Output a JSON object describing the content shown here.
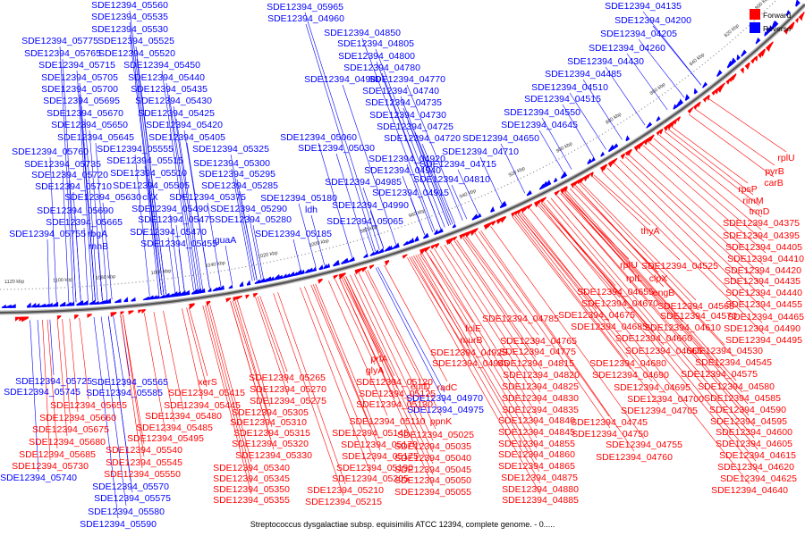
{
  "caption": "Streptococcus dysgalactiae subsp. equisimilis ATCC 12394, complete genome. - 0.....",
  "legend": [
    {
      "label": "Forward",
      "color": "#ff0000"
    },
    {
      "label": "Reverse",
      "color": "#0000ff"
    }
  ],
  "colors": {
    "forward": "#ff0000",
    "reverse": "#0000ff",
    "backbone": "#555555"
  },
  "ticks": [
    {
      "label": "800 kbp",
      "frac": 0.965
    },
    {
      "label": "820 kbp",
      "frac": 0.915
    },
    {
      "label": "840 kbp",
      "frac": 0.86
    },
    {
      "label": "860 kbp",
      "frac": 0.8
    },
    {
      "label": "880 kbp",
      "frac": 0.735
    },
    {
      "label": "900 kbp",
      "frac": 0.665
    },
    {
      "label": "920 kbp",
      "frac": 0.6
    },
    {
      "label": "940 kbp",
      "frac": 0.535
    },
    {
      "label": "960 kbp",
      "frac": 0.47
    },
    {
      "label": "980 kbp",
      "frac": 0.41
    },
    {
      "label": "1000 kbp",
      "frac": 0.35
    },
    {
      "label": "1020 kbp",
      "frac": 0.29
    },
    {
      "label": "1040 kbp",
      "frac": 0.23
    },
    {
      "label": "1060 kbp",
      "frac": 0.17
    },
    {
      "label": "1080 kbp",
      "frac": 0.11
    },
    {
      "label": "1100 kbp",
      "frac": 0.065
    },
    {
      "label": "1120 kbp",
      "frac": 0.015
    }
  ],
  "top_blue_labels": [
    [
      "SDE12394_05560",
      145,
      9
    ],
    [
      "SDE12394_05535",
      145,
      22
    ],
    [
      "SDE12394_05530",
      145,
      36
    ],
    [
      "SDE12394_05775",
      67,
      49
    ],
    [
      "SDE12394_05525",
      152,
      49
    ],
    [
      "SDE12394_05765",
      70,
      63
    ],
    [
      "SDE12394_05520",
      153,
      63
    ],
    [
      "SDE12394_05715",
      86,
      76
    ],
    [
      "SDE12394_05450",
      181,
      76
    ],
    [
      "SDE12394_05705",
      89,
      90
    ],
    [
      "SDE12394_05440",
      186,
      90
    ],
    [
      "SDE12394_05700",
      89,
      103
    ],
    [
      "SDE12394_05435",
      189,
      103
    ],
    [
      "SDE12394_05695",
      91,
      116
    ],
    [
      "SDE12394_05430",
      194,
      116
    ],
    [
      "SDE12394_05670",
      95,
      130
    ],
    [
      "SDE12394_05425",
      197,
      130
    ],
    [
      "SDE12394_05650",
      100,
      143
    ],
    [
      "SDE12394_05420",
      206,
      143
    ],
    [
      "SDE12394_05645",
      107,
      157
    ],
    [
      "SDE12394_05405",
      209,
      157
    ],
    [
      "SDE12394_05760",
      56,
      173
    ],
    [
      "SDE12394_05555",
      151,
      170
    ],
    [
      "SDE12394_05325",
      258,
      170
    ],
    [
      "SDE12394_05735",
      70,
      187
    ],
    [
      "SDE12394_05515",
      162,
      183
    ],
    [
      "SDE12394_05300",
      259,
      186
    ],
    [
      "SDE12394_05720",
      78,
      199
    ],
    [
      "SDE12394_05510",
      166,
      197
    ],
    [
      "SDE12394_05295",
      265,
      198
    ],
    [
      "SDE12394_05710",
      82,
      212
    ],
    [
      "SDE12394_05505",
      169,
      211
    ],
    [
      "SDE12394_05285",
      268,
      211
    ],
    [
      "SDE12394_05630",
      115,
      224
    ],
    [
      "citX",
      168,
      224
    ],
    [
      "SDE12394_05375",
      232,
      224
    ],
    [
      "SDE12394_05690",
      84,
      239
    ],
    [
      "SDE12394_05490",
      190,
      237
    ],
    [
      "SDE12394_05290",
      278,
      237
    ],
    [
      "SDE12394_05665",
      94,
      252
    ],
    [
      "SDE12394_05475",
      197,
      249
    ],
    [
      "SDE12394_05280",
      283,
      249
    ],
    [
      "SDE12394_05755",
      53,
      265
    ],
    [
      "rbgA",
      109,
      265
    ],
    [
      "SDE12394_05470",
      188,
      263
    ],
    [
      "SDE12394_05185",
      328,
      265
    ],
    [
      "rnhB",
      110,
      279
    ],
    [
      "SDE12394_05455",
      200,
      276
    ],
    [
      "guaA",
      252,
      272
    ],
    [
      "SDE12394_05180",
      334,
      225
    ],
    [
      "ldh",
      348,
      238
    ],
    [
      "SDE12394_05965",
      341,
      11
    ],
    [
      "SDE12394_04960",
      342,
      24
    ],
    [
      "SDE12394_04850",
      405,
      40
    ],
    [
      "SDE12394_04805",
      420,
      52
    ],
    [
      "SDE12394_04800",
      421,
      66
    ],
    [
      "SDE12394_04780",
      427,
      79
    ],
    [
      "SDE12394_04980",
      383,
      92
    ],
    [
      "SDE12394_04770",
      455,
      92
    ],
    [
      "SDE12394_04740",
      448,
      105
    ],
    [
      "SDE12394_04735",
      451,
      118
    ],
    [
      "SDE12394_04730",
      456,
      132
    ],
    [
      "SDE12394_04725",
      464,
      145
    ],
    [
      "SDE12394_05060",
      356,
      157
    ],
    [
      "SDE12394_04720",
      472,
      158
    ],
    [
      "SDE12394_05030",
      376,
      169
    ],
    [
      "SDE12394_04920",
      455,
      181
    ],
    [
      "SDE12394_04940",
      450,
      194
    ],
    [
      "SDE12394_04985",
      406,
      207
    ],
    [
      "SDE12394_04915",
      459,
      219
    ],
    [
      "SDE12394_04990",
      414,
      233
    ],
    [
      "SDE12394_05065",
      408,
      251
    ],
    [
      "SDE12394_04810",
      505,
      204
    ],
    [
      "SDE12394_04715",
      512,
      187
    ],
    [
      "SDE12394_04710",
      537,
      173
    ],
    [
      "SDE12394_04650",
      560,
      158
    ],
    [
      "SDE12394_04645",
      603,
      143
    ],
    [
      "SDE12394_04550",
      606,
      129
    ],
    [
      "SDE12394_04515",
      629,
      114
    ],
    [
      "SDE12394_04510",
      637,
      101
    ],
    [
      "SDE12394_04485",
      652,
      86
    ],
    [
      "SDE12394_04430",
      677,
      72
    ],
    [
      "SDE12394_04260",
      701,
      57
    ],
    [
      "SDE12394_04205",
      714,
      41
    ],
    [
      "SDE12394_04200",
      730,
      26
    ],
    [
      "SDE12394_04135",
      719,
      10
    ]
  ],
  "bottom_blue_labels": [
    [
      "SDE12394_05725",
      60,
      430
    ],
    [
      "SDE12394_05565",
      145,
      431
    ],
    [
      "SDE12394_05745",
      47,
      442
    ],
    [
      "SDE12394_05585",
      139,
      443
    ],
    [
      "SDE12394_05740",
      43,
      538
    ],
    [
      "SDE12394_05570",
      146,
      548
    ],
    [
      "SDE12394_05575",
      148,
      561
    ],
    [
      "SDE12394_05580",
      141,
      576
    ],
    [
      "SDE12394_05590",
      132,
      590
    ],
    [
      "SDE12394_04970",
      497,
      449
    ],
    [
      "SDE12394_04975",
      498,
      462
    ]
  ],
  "bottom_red_labels": [
    [
      "xerS",
      232,
      431
    ],
    [
      "SDE12394_05415",
      231,
      443
    ],
    [
      "SDE12394_05445",
      226,
      457
    ],
    [
      "SDE12394_05655",
      99,
      457
    ],
    [
      "SDE12394_05660",
      87,
      471
    ],
    [
      "SDE12394_05480",
      205,
      469
    ],
    [
      "SDE12394_05675",
      79,
      484
    ],
    [
      "SDE12394_05485",
      195,
      482
    ],
    [
      "SDE12394_05680",
      75,
      498
    ],
    [
      "SDE12394_05495",
      185,
      494
    ],
    [
      "SDE12394_05685",
      64,
      512
    ],
    [
      "SDE12394_05540",
      161,
      507
    ],
    [
      "SDE12394_05730",
      56,
      525
    ],
    [
      "SDE12394_05545",
      161,
      521
    ],
    [
      "SDE12394_05550",
      159,
      534
    ],
    [
      "SDE12394_05265",
      321,
      426
    ],
    [
      "SDE12394_05270",
      322,
      439
    ],
    [
      "SDE12394_05275",
      322,
      452
    ],
    [
      "SDE12394_05305",
      302,
      465
    ],
    [
      "SDE12394_05310",
      300,
      476
    ],
    [
      "SDE12394_05315",
      304,
      488
    ],
    [
      "SDE12394_05320",
      302,
      500
    ],
    [
      "SDE12394_05330",
      306,
      513
    ],
    [
      "SDE12394_05340",
      281,
      527
    ],
    [
      "SDE12394_05345",
      281,
      539
    ],
    [
      "SDE12394_05350",
      281,
      551
    ],
    [
      "SDE12394_05355",
      281,
      563
    ],
    [
      "SDE12394_05120",
      441,
      431
    ],
    [
      "SDE12394_05125",
      444,
      444
    ],
    [
      "SDE12394_05130",
      441,
      456
    ],
    [
      "SDE12394_05110",
      433,
      475
    ],
    [
      "SDE12394_05145",
      414,
      488
    ],
    [
      "SDE12394_05170",
      424,
      501
    ],
    [
      "SDE12394_05175",
      425,
      514
    ],
    [
      "SDE12394_05190",
      419,
      527
    ],
    [
      "SDE12394_05205",
      414,
      539
    ],
    [
      "SDE12394_05210",
      386,
      552
    ],
    [
      "SDE12394_05215",
      384,
      565
    ],
    [
      "prfA",
      424,
      405
    ],
    [
      "glyA",
      419,
      418
    ],
    [
      "eutD",
      470,
      436
    ],
    [
      "radC",
      500,
      437
    ],
    [
      "ppnK",
      493,
      475
    ],
    [
      "SDE12394_05025",
      487,
      490
    ],
    [
      "SDE12394_05035",
      484,
      503
    ],
    [
      "SDE12394_05040",
      484,
      516
    ],
    [
      "SDE12394_05045",
      484,
      529
    ],
    [
      "SDE12394_05050",
      484,
      541
    ],
    [
      "SDE12394_05055",
      484,
      554
    ],
    [
      "SDE12394_04945",
      526,
      410
    ],
    [
      "SDE12394_04925",
      524,
      398
    ],
    [
      "folE",
      529,
      371
    ],
    [
      "murB",
      527,
      384
    ],
    [
      "SDE12394_04785",
      582,
      360
    ],
    [
      "SDE12394_04765",
      602,
      385
    ],
    [
      "SDE12394_04775",
      601,
      397
    ],
    [
      "SDE12394_04815",
      599,
      410
    ],
    [
      "SDE12394_04820",
      605,
      423
    ],
    [
      "SDE12394_04825",
      604,
      436
    ],
    [
      "SDE12394_04830",
      604,
      449
    ],
    [
      "SDE12394_04835",
      604,
      462
    ],
    [
      "SDE12394_04840",
      600,
      474
    ],
    [
      "SDE12394_04845",
      600,
      487
    ],
    [
      "SDE12394_04855",
      600,
      500
    ],
    [
      "SDE12394_04860",
      600,
      512
    ],
    [
      "SDE12394_04865",
      600,
      525
    ],
    [
      "SDE12394_04875",
      603,
      538
    ],
    [
      "SDE12394_04880",
      604,
      551
    ],
    [
      "SDE12394_04885",
      604,
      563
    ],
    [
      "SDE12394_04655",
      688,
      330
    ],
    [
      "SDE12394_04670",
      693,
      343
    ],
    [
      "SDE12394_04675",
      667,
      356
    ],
    [
      "SDE12394_04685",
      681,
      369
    ],
    [
      "SDE12394_04660",
      731,
      382
    ],
    [
      "SDE12394_04665",
      742,
      396
    ],
    [
      "SDE12394_04680",
      702,
      410
    ],
    [
      "SDE12394_04690",
      705,
      423
    ],
    [
      "SDE12394_04695",
      729,
      437
    ],
    [
      "SDE12394_04700",
      744,
      450
    ],
    [
      "SDE12394_04705",
      737,
      463
    ],
    [
      "SDE12394_04745",
      681,
      476
    ],
    [
      "SDE12394_04750",
      682,
      489
    ],
    [
      "SDE12394_04755",
      720,
      501
    ],
    [
      "SDE12394_04760",
      709,
      515
    ],
    [
      "thyA",
      727,
      262
    ],
    [
      "SDE12394_04525",
      760,
      301
    ],
    [
      "rpIU",
      703,
      300
    ],
    [
      "rpIL",
      709,
      315
    ],
    [
      "clpX",
      736,
      315
    ],
    [
      "engB",
      742,
      331
    ],
    [
      "SDE12394_04565",
      778,
      346
    ],
    [
      "SDE12394_04570",
      781,
      357
    ],
    [
      "SDE12394_04610",
      763,
      370
    ],
    [
      "SDE12394_04530",
      810,
      396
    ],
    [
      "SDE12394_04545",
      820,
      409
    ],
    [
      "SDE12394_04575",
      804,
      422
    ],
    [
      "SDE12394_04580",
      823,
      436
    ],
    [
      "SDE12394_04585",
      830,
      449
    ],
    [
      "SDE12394_04590",
      836,
      462
    ],
    [
      "SDE12394_04595",
      837,
      475
    ],
    [
      "SDE12394_04600",
      843,
      487
    ],
    [
      "SDE12394_04605",
      843,
      500
    ],
    [
      "SDE12394_04615",
      847,
      513
    ],
    [
      "SDE12394_04620",
      845,
      526
    ],
    [
      "SDE12394_04625",
      848,
      539
    ],
    [
      "SDE12394_04640",
      838,
      552
    ],
    [
      "SDE12394_04490",
      852,
      371
    ],
    [
      "SDE12394_04495",
      854,
      384
    ],
    [
      "SDE12394_04455",
      854,
      344
    ],
    [
      "SDE12394_04465",
      856,
      358
    ],
    [
      "SDE12394_04440",
      854,
      331
    ],
    [
      "SDE12394_04435",
      852,
      318
    ],
    [
      "SDE12394_04420",
      853,
      306
    ],
    [
      "SDE12394_04410",
      856,
      293
    ],
    [
      "SDE12394_04405",
      854,
      280
    ],
    [
      "SDE12394_04395",
      851,
      267
    ],
    [
      "SDE12394_04375",
      851,
      253
    ],
    [
      "trmD",
      849,
      240
    ],
    [
      "rimM",
      842,
      228
    ],
    [
      "rpsP",
      836,
      215
    ],
    [
      "carB",
      865,
      208
    ],
    [
      "pyrB",
      866,
      195
    ],
    [
      "rplU",
      879,
      180
    ]
  ]
}
